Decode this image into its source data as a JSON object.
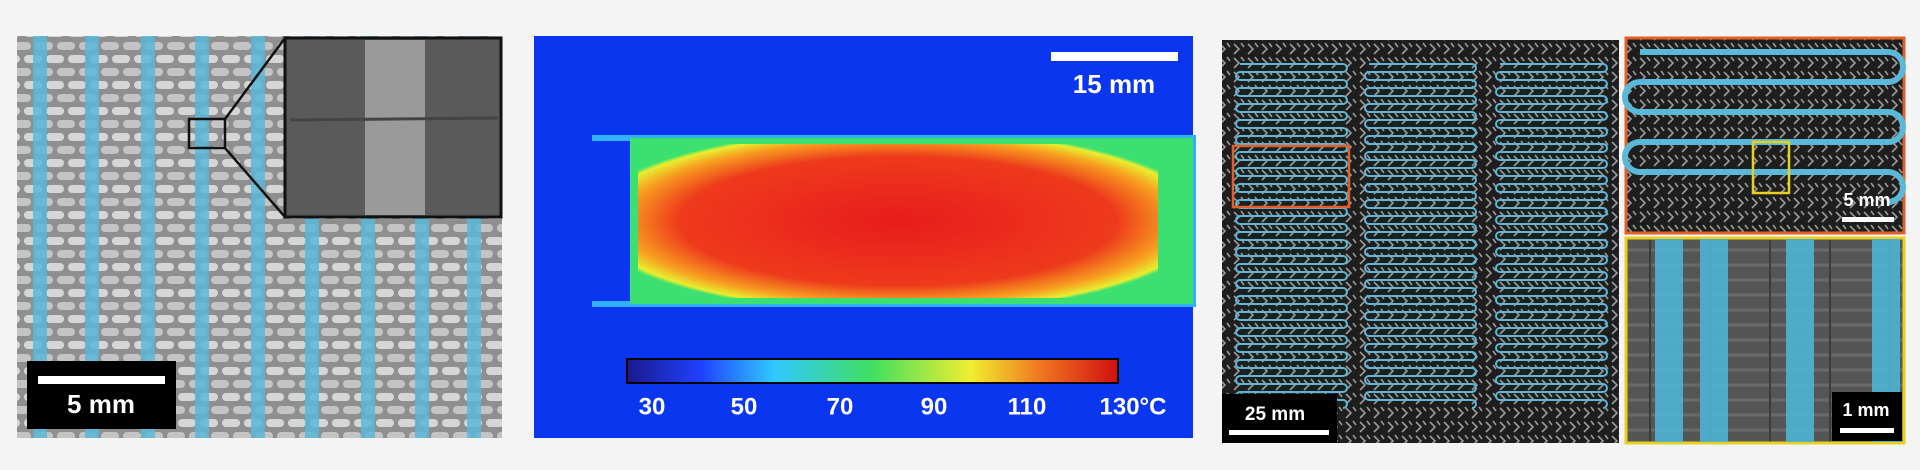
{
  "panel_a": {
    "scale_bar": "5 mm"
  },
  "panel_b": {
    "scale_bar": "15 mm",
    "colorbar_labels": [
      "30",
      "50",
      "70",
      "90",
      "110",
      "130°C"
    ]
  },
  "panel_c": {
    "scale_bar": "25 mm"
  },
  "panel_d": {
    "top_scale_bar": "5 mm",
    "bottom_scale_bar": "1 mm"
  }
}
